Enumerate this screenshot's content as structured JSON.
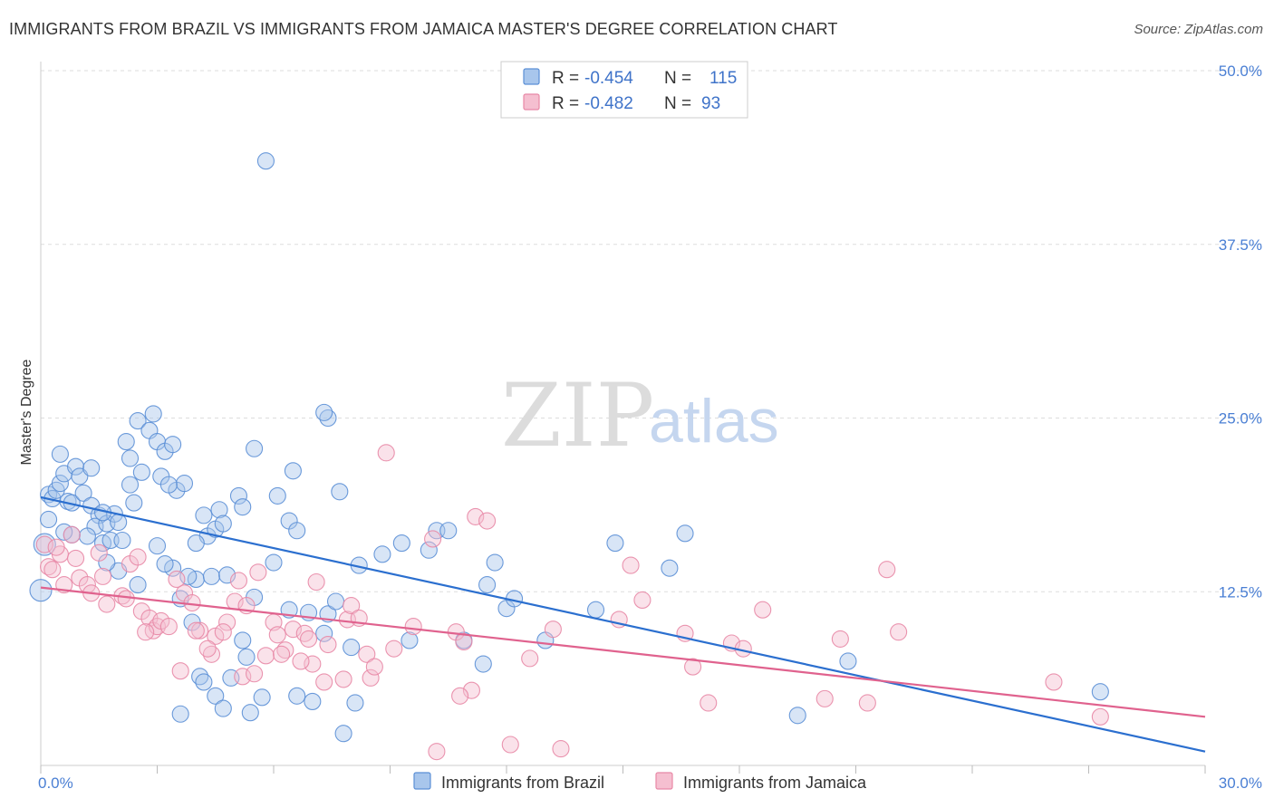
{
  "title": "IMMIGRANTS FROM BRAZIL VS IMMIGRANTS FROM JAMAICA MASTER'S DEGREE CORRELATION CHART",
  "source": "Source: ZipAtlas.com",
  "watermark": {
    "part1": "ZIP",
    "part2": "atlas"
  },
  "colors": {
    "brazil_fill": "#a8c6ec",
    "brazil_stroke": "#5b8fd6",
    "brazil_line": "#2b6fcf",
    "jamaica_fill": "#f5bfd0",
    "jamaica_stroke": "#e888a6",
    "jamaica_line": "#e0628e",
    "tick_text": "#4a7fd4",
    "grid": "#dddddd"
  },
  "legend": {
    "rows": [
      {
        "r_label": "R =",
        "r_value": "-0.454",
        "n_label": "N =",
        "n_value": "115"
      },
      {
        "r_label": "R =",
        "r_value": "-0.482",
        "n_label": "N =",
        "n_value": "93"
      }
    ]
  },
  "bottom_legend": [
    "Immigrants from Brazil",
    "Immigrants from Jamaica"
  ],
  "chart_data": {
    "type": "scatter",
    "title": "IMMIGRANTS FROM BRAZIL VS IMMIGRANTS FROM JAMAICA MASTER'S DEGREE CORRELATION CHART",
    "xlabel": "",
    "ylabel": "Master's Degree",
    "xlim": [
      0,
      30
    ],
    "ylim": [
      0,
      50
    ],
    "x_tick_labels": [
      "0.0%",
      "30.0%"
    ],
    "y_ticks": [
      12.5,
      25.0,
      37.5,
      50.0
    ],
    "y_tick_labels": [
      "12.5%",
      "25.0%",
      "37.5%",
      "50.0%"
    ],
    "grid": "horizontal dashed",
    "series": [
      {
        "name": "Immigrants from Brazil",
        "R": -0.454,
        "N": 115,
        "trend": {
          "x": [
            0,
            30
          ],
          "y": [
            19.3,
            1.0
          ]
        },
        "points": [
          [
            0.2,
            19.5
          ],
          [
            0.3,
            19.2
          ],
          [
            0.4,
            19.8
          ],
          [
            0.5,
            20.3
          ],
          [
            0.6,
            21.0
          ],
          [
            0.7,
            19.0
          ],
          [
            0.5,
            22.4
          ],
          [
            0.9,
            21.5
          ],
          [
            1.0,
            20.8
          ],
          [
            0.2,
            17.7
          ],
          [
            0.8,
            18.9
          ],
          [
            1.1,
            19.6
          ],
          [
            1.3,
            18.7
          ],
          [
            1.5,
            18.0
          ],
          [
            1.4,
            17.2
          ],
          [
            1.7,
            17.4
          ],
          [
            1.2,
            16.5
          ],
          [
            1.9,
            18.1
          ],
          [
            2.0,
            17.5
          ],
          [
            1.6,
            16.0
          ],
          [
            1.8,
            16.2
          ],
          [
            2.3,
            20.2
          ],
          [
            2.4,
            18.9
          ],
          [
            2.6,
            21.1
          ],
          [
            2.5,
            24.8
          ],
          [
            2.2,
            23.3
          ],
          [
            2.8,
            24.1
          ],
          [
            2.9,
            25.3
          ],
          [
            3.0,
            23.3
          ],
          [
            3.1,
            20.8
          ],
          [
            3.2,
            22.6
          ],
          [
            3.4,
            23.1
          ],
          [
            3.5,
            19.8
          ],
          [
            3.7,
            20.3
          ],
          [
            3.3,
            20.2
          ],
          [
            2.3,
            22.1
          ],
          [
            4.2,
            18.0
          ],
          [
            4.3,
            16.5
          ],
          [
            4.5,
            17.0
          ],
          [
            4.6,
            18.4
          ],
          [
            4.7,
            17.4
          ],
          [
            4.0,
            13.4
          ],
          [
            4.4,
            13.6
          ],
          [
            3.4,
            14.2
          ],
          [
            3.8,
            13.6
          ],
          [
            2.0,
            14.0
          ],
          [
            1.7,
            14.6
          ],
          [
            2.5,
            13.0
          ],
          [
            3.2,
            14.5
          ],
          [
            3.6,
            12.0
          ],
          [
            3.9,
            10.3
          ],
          [
            4.1,
            6.4
          ],
          [
            4.2,
            6.0
          ],
          [
            4.5,
            5.0
          ],
          [
            4.7,
            4.1
          ],
          [
            4.9,
            6.3
          ],
          [
            5.2,
            9.0
          ],
          [
            5.3,
            7.8
          ],
          [
            5.5,
            12.1
          ],
          [
            5.7,
            4.9
          ],
          [
            6.4,
            11.2
          ],
          [
            6.0,
            14.6
          ],
          [
            6.1,
            19.4
          ],
          [
            6.4,
            17.6
          ],
          [
            6.6,
            16.9
          ],
          [
            6.9,
            11.0
          ],
          [
            7.3,
            9.5
          ],
          [
            7.4,
            10.9
          ],
          [
            7.6,
            11.8
          ],
          [
            6.5,
            21.2
          ],
          [
            5.5,
            22.8
          ],
          [
            5.8,
            43.5
          ],
          [
            7.7,
            19.7
          ],
          [
            7.4,
            25.0
          ],
          [
            7.3,
            25.4
          ],
          [
            8.2,
            14.4
          ],
          [
            8.8,
            15.2
          ],
          [
            9.5,
            9.0
          ],
          [
            10.2,
            16.9
          ],
          [
            10.5,
            16.9
          ],
          [
            11.7,
            14.6
          ],
          [
            12.0,
            11.3
          ],
          [
            12.2,
            12.0
          ],
          [
            13.0,
            9.0
          ],
          [
            14.3,
            11.2
          ],
          [
            14.8,
            16.0
          ],
          [
            16.2,
            14.2
          ],
          [
            16.6,
            16.7
          ],
          [
            20.8,
            7.5
          ],
          [
            27.3,
            5.3
          ],
          [
            19.5,
            3.6
          ],
          [
            8.0,
            8.5
          ],
          [
            8.1,
            4.5
          ],
          [
            7.0,
            4.6
          ],
          [
            6.6,
            5.0
          ],
          [
            3.6,
            3.7
          ],
          [
            5.4,
            3.8
          ],
          [
            7.8,
            2.3
          ],
          [
            10.9,
            9.0
          ],
          [
            11.4,
            7.3
          ],
          [
            4.8,
            13.7
          ],
          [
            5.1,
            19.4
          ],
          [
            5.2,
            18.6
          ],
          [
            4.0,
            16.0
          ],
          [
            3.0,
            15.8
          ],
          [
            0.8,
            16.6
          ],
          [
            1.3,
            21.4
          ],
          [
            1.6,
            18.2
          ],
          [
            2.1,
            16.2
          ],
          [
            0.6,
            16.8
          ],
          [
            0.1,
            15.9
          ],
          [
            0.0,
            12.6
          ],
          [
            9.3,
            16.0
          ],
          [
            10.0,
            15.5
          ],
          [
            11.5,
            13.0
          ]
        ]
      },
      {
        "name": "Immigrants from Jamaica",
        "R": -0.482,
        "N": 93,
        "trend": {
          "x": [
            0,
            30
          ],
          "y": [
            12.8,
            3.5
          ]
        },
        "points": [
          [
            0.1,
            15.9
          ],
          [
            0.2,
            14.3
          ],
          [
            0.3,
            14.1
          ],
          [
            0.5,
            15.2
          ],
          [
            0.9,
            14.9
          ],
          [
            0.8,
            16.6
          ],
          [
            1.0,
            13.5
          ],
          [
            0.6,
            13.0
          ],
          [
            1.2,
            13.0
          ],
          [
            1.3,
            12.4
          ],
          [
            1.6,
            13.6
          ],
          [
            1.7,
            11.6
          ],
          [
            2.1,
            12.2
          ],
          [
            2.2,
            12.0
          ],
          [
            2.3,
            14.5
          ],
          [
            2.5,
            15.0
          ],
          [
            2.6,
            11.1
          ],
          [
            2.8,
            10.6
          ],
          [
            2.9,
            9.7
          ],
          [
            3.0,
            10.0
          ],
          [
            3.1,
            10.4
          ],
          [
            3.3,
            10.0
          ],
          [
            3.5,
            13.4
          ],
          [
            3.7,
            12.4
          ],
          [
            3.9,
            11.7
          ],
          [
            4.1,
            9.7
          ],
          [
            4.4,
            8.0
          ],
          [
            4.5,
            9.3
          ],
          [
            4.8,
            10.3
          ],
          [
            5.0,
            11.8
          ],
          [
            5.1,
            13.3
          ],
          [
            5.3,
            11.5
          ],
          [
            5.6,
            13.9
          ],
          [
            5.8,
            7.9
          ],
          [
            6.0,
            10.3
          ],
          [
            6.1,
            9.4
          ],
          [
            6.3,
            8.3
          ],
          [
            6.5,
            9.8
          ],
          [
            6.8,
            9.5
          ],
          [
            7.1,
            13.2
          ],
          [
            7.0,
            7.3
          ],
          [
            7.4,
            8.7
          ],
          [
            7.8,
            6.2
          ],
          [
            7.9,
            10.5
          ],
          [
            8.0,
            11.5
          ],
          [
            8.2,
            10.6
          ],
          [
            8.4,
            8.0
          ],
          [
            8.5,
            6.3
          ],
          [
            8.9,
            22.5
          ],
          [
            9.6,
            10.0
          ],
          [
            10.1,
            16.3
          ],
          [
            10.7,
            9.6
          ],
          [
            10.9,
            8.9
          ],
          [
            11.2,
            17.9
          ],
          [
            11.5,
            17.6
          ],
          [
            12.6,
            7.7
          ],
          [
            13.2,
            9.8
          ],
          [
            14.9,
            10.5
          ],
          [
            15.2,
            14.4
          ],
          [
            15.5,
            11.9
          ],
          [
            16.6,
            9.5
          ],
          [
            16.8,
            7.1
          ],
          [
            17.2,
            4.5
          ],
          [
            17.8,
            8.8
          ],
          [
            18.1,
            8.4
          ],
          [
            18.6,
            11.2
          ],
          [
            20.2,
            4.8
          ],
          [
            20.6,
            9.1
          ],
          [
            21.3,
            4.5
          ],
          [
            21.8,
            14.1
          ],
          [
            22.1,
            9.6
          ],
          [
            26.1,
            6.0
          ],
          [
            27.3,
            3.5
          ],
          [
            3.6,
            6.8
          ],
          [
            5.2,
            6.4
          ],
          [
            5.5,
            6.6
          ],
          [
            6.7,
            7.5
          ],
          [
            7.3,
            6.0
          ],
          [
            4.0,
            9.7
          ],
          [
            4.3,
            8.4
          ],
          [
            2.7,
            9.6
          ],
          [
            1.5,
            15.3
          ],
          [
            0.4,
            15.7
          ],
          [
            11.1,
            5.4
          ],
          [
            10.8,
            5.0
          ],
          [
            12.1,
            1.5
          ],
          [
            13.4,
            1.2
          ],
          [
            10.2,
            1.0
          ],
          [
            4.7,
            9.6
          ],
          [
            6.2,
            8.0
          ],
          [
            6.9,
            9.1
          ],
          [
            9.1,
            8.4
          ],
          [
            8.6,
            7.1
          ]
        ]
      }
    ]
  }
}
